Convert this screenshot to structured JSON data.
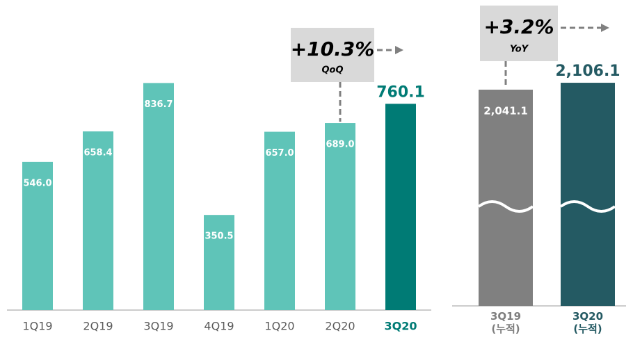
{
  "chart_data": [
    {
      "type": "bar",
      "categories": [
        "1Q19",
        "2Q19",
        "3Q19",
        "4Q19",
        "1Q20",
        "2Q20",
        "3Q20"
      ],
      "values": [
        546.0,
        658.4,
        836.7,
        350.5,
        657.0,
        689.0,
        760.1
      ],
      "value_labels": [
        "546.0",
        "658.4",
        "836.7",
        "350.5",
        "657.0",
        "689.0",
        "760.1"
      ],
      "colors": [
        "#5fc4b8",
        "#5fc4b8",
        "#5fc4b8",
        "#5fc4b8",
        "#5fc4b8",
        "#5fc4b8",
        "#007b75"
      ],
      "label_position": [
        "inside",
        "inside",
        "inside",
        "inside",
        "inside",
        "inside",
        "outside"
      ],
      "ylim": [
        0,
        1140
      ],
      "annotation": {
        "text": "+10.3%",
        "sub": "QoQ"
      }
    },
    {
      "type": "bar",
      "categories": [
        "3Q19\n(누적)",
        "3Q20\n(누적)"
      ],
      "values": [
        2041.1,
        2106.1
      ],
      "value_labels": [
        "2,041.1",
        "2,106.1"
      ],
      "colors": [
        "#808080",
        "#245a63"
      ],
      "label_position": [
        "inside",
        "outside"
      ],
      "ylim": [
        0,
        2260
      ],
      "broken_axis": true,
      "annotation": {
        "text": "+3.2%",
        "sub": "YoY"
      }
    }
  ]
}
